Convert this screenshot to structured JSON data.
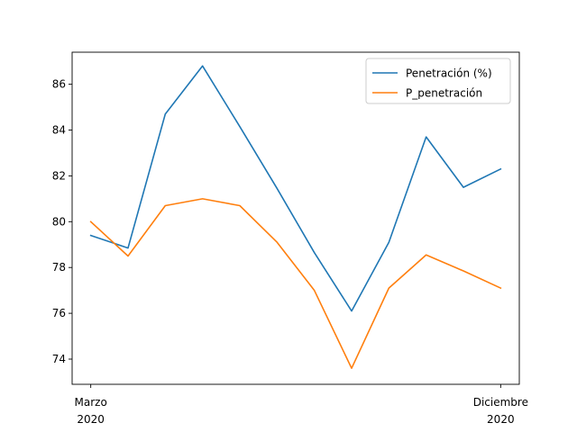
{
  "chart_data": {
    "type": "line",
    "title": "",
    "xlabel": "",
    "ylabel": "",
    "x": [
      0,
      1,
      2,
      3,
      4,
      5,
      6,
      7,
      8,
      9,
      10,
      11
    ],
    "xlim": [
      -0.5,
      11.5
    ],
    "ylim": [
      72.9,
      87.4
    ],
    "y_ticks": [
      74,
      76,
      78,
      80,
      82,
      84,
      86
    ],
    "x_tick_positions": [
      0,
      11
    ],
    "x_tick_labels": [
      {
        "month": "Marzo",
        "year": "2020"
      },
      {
        "month": "Diciembre",
        "year": "2020"
      }
    ],
    "legend_position": "top-right",
    "grid": false,
    "series": [
      {
        "name": "Penetración (%)",
        "color": "#1f77b4",
        "values": [
          79.4,
          78.85,
          84.7,
          86.8,
          84.15,
          81.45,
          78.65,
          76.1,
          79.1,
          83.7,
          81.5,
          82.3
        ]
      },
      {
        "name": "P_penetración",
        "color": "#ff7f0e",
        "values": [
          80.0,
          78.5,
          80.7,
          81.0,
          80.7,
          79.1,
          77.0,
          73.6,
          77.1,
          78.55,
          77.85,
          77.1
        ]
      }
    ]
  }
}
